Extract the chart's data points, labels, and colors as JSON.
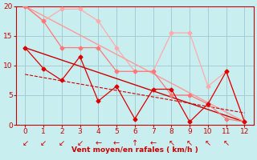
{
  "background_color": "#c8eef0",
  "grid_color": "#a0c8cc",
  "xlabel": "Vent moyen/en rafales ( km/h )",
  "xlabel_color": "#cc0000",
  "tick_color": "#cc0000",
  "xlim": [
    -0.5,
    12.5
  ],
  "ylim": [
    0,
    20
  ],
  "xticks": [
    0,
    1,
    2,
    3,
    4,
    5,
    6,
    7,
    8,
    9,
    10,
    11,
    12
  ],
  "yticks": [
    0,
    5,
    10,
    15,
    20
  ],
  "series": [
    {
      "x": [
        0,
        1,
        2,
        3,
        4,
        5,
        6,
        7,
        8,
        9,
        10,
        11,
        12
      ],
      "y": [
        20,
        17.5,
        19.5,
        19.5,
        17.5,
        13,
        9,
        9,
        15.5,
        15.5,
        6.5,
        9,
        0.5
      ],
      "color": "#ffaaaa",
      "marker": "D",
      "markersize": 2.5,
      "linewidth": 0.9,
      "linestyle": "-"
    },
    {
      "x": [
        0,
        1,
        2,
        3,
        4,
        5,
        6,
        7,
        8,
        9,
        10,
        11,
        12
      ],
      "y": [
        20,
        17.5,
        13,
        13,
        13,
        9,
        9,
        9,
        5,
        5,
        3.5,
        1,
        0.5
      ],
      "color": "#ff7777",
      "marker": "D",
      "markersize": 2.5,
      "linewidth": 0.9,
      "linestyle": "-"
    },
    {
      "x": [
        0,
        1,
        2,
        3,
        4,
        5,
        6,
        7,
        8,
        9,
        10,
        11,
        12
      ],
      "y": [
        13,
        9.5,
        7.5,
        11.5,
        4,
        6.5,
        1,
        6,
        6,
        0.5,
        3.5,
        9,
        0.5
      ],
      "color": "#dd0000",
      "marker": "D",
      "markersize": 2.5,
      "linewidth": 0.9,
      "linestyle": "-"
    },
    {
      "x": [
        0,
        12
      ],
      "y": [
        13,
        0.5
      ],
      "color": "#cc0000",
      "marker": null,
      "markersize": 0,
      "linewidth": 1.0,
      "linestyle": "-"
    },
    {
      "x": [
        0,
        12
      ],
      "y": [
        20,
        0.5
      ],
      "color": "#ff9999",
      "marker": null,
      "markersize": 0,
      "linewidth": 1.0,
      "linestyle": "-"
    },
    {
      "x": [
        0,
        12
      ],
      "y": [
        8.5,
        2.0
      ],
      "color": "#cc0000",
      "marker": null,
      "markersize": 0,
      "linewidth": 0.8,
      "linestyle": "--"
    }
  ],
  "wind_arrows": {
    "positions": [
      0,
      1,
      2,
      3,
      4,
      5,
      6,
      7,
      8,
      9,
      10,
      11
    ],
    "angles_deg": [
      225,
      225,
      225,
      225,
      200,
      200,
      90,
      180,
      160,
      160,
      160,
      160
    ],
    "color": "#cc0000",
    "size": 7
  }
}
